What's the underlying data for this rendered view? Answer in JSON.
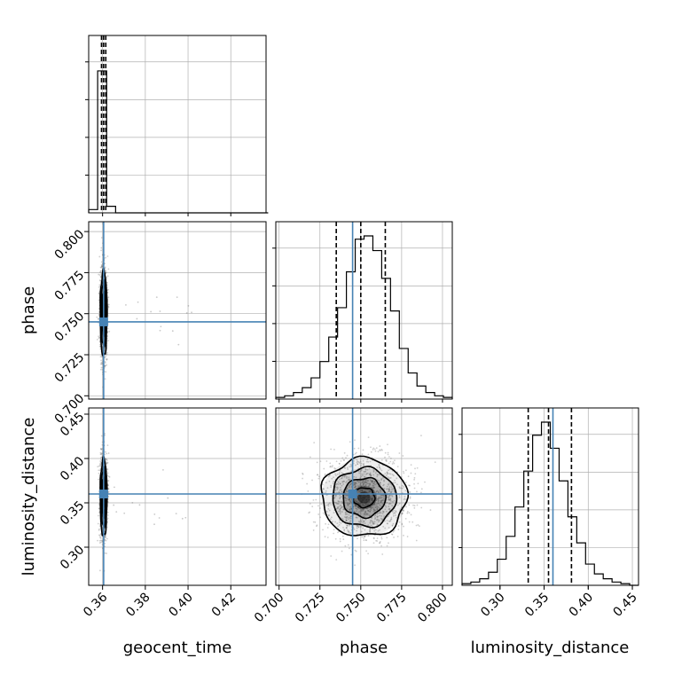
{
  "chart_data": {
    "type": "scatter",
    "kind": "corner-plot",
    "parameters": [
      "geocent_time",
      "phase",
      "luminosity_distance"
    ],
    "truth_color": "#4682b4",
    "truths": {
      "geocent_time": 0.3605,
      "phase": 0.745,
      "luminosity_distance": 0.36
    },
    "quantiles": {
      "geocent_time": [
        0.3595,
        0.3605,
        0.3615
      ],
      "phase": [
        0.735,
        0.75,
        0.765
      ],
      "luminosity_distance": [
        0.332,
        0.355,
        0.381
      ]
    },
    "ranges": {
      "geocent_time": [
        0.3535,
        0.4365
      ],
      "phase": [
        0.698,
        0.806
      ],
      "luminosity_distance": [
        0.257,
        0.457
      ]
    },
    "ticks": {
      "geocent_time": [
        "0.36",
        "0.38",
        "0.40",
        "0.42"
      ],
      "phase": [
        "0.700",
        "0.725",
        "0.750",
        "0.775",
        "0.800"
      ],
      "luminosity_distance": [
        "0.30",
        "0.35",
        "0.40",
        "0.45"
      ]
    },
    "histograms": {
      "geocent_time": {
        "edges_start": 0.3535,
        "bin_width": 0.0042,
        "counts": [
          0.02,
          0.87,
          0.04,
          0,
          0,
          0,
          0,
          0,
          0,
          0,
          0,
          0,
          0,
          0,
          0,
          0,
          0,
          0,
          0,
          0
        ]
      },
      "phase": {
        "edges_start": 0.698,
        "bin_width": 0.0054,
        "counts": [
          0.01,
          0.02,
          0.04,
          0.07,
          0.13,
          0.23,
          0.38,
          0.56,
          0.78,
          0.98,
          1.0,
          0.91,
          0.74,
          0.54,
          0.31,
          0.16,
          0.08,
          0.04,
          0.02,
          0.01
        ]
      },
      "luminosity_distance": {
        "edges_start": 0.257,
        "bin_width": 0.01,
        "counts": [
          0.01,
          0.02,
          0.04,
          0.08,
          0.16,
          0.3,
          0.48,
          0.7,
          0.92,
          1.0,
          0.84,
          0.64,
          0.42,
          0.26,
          0.13,
          0.07,
          0.04,
          0.02,
          0.01,
          0.0
        ]
      }
    },
    "density_2d": {
      "phase_vs_geocent_time": {
        "x_center": 0.3605,
        "x_sigma": 0.0008,
        "y_center": 0.75,
        "y_sigma": 0.013
      },
      "luminosity_distance_vs_geocent_time": {
        "x_center": 0.3605,
        "x_sigma": 0.0008,
        "y_center": 0.356,
        "y_sigma": 0.022
      },
      "luminosity_distance_vs_phase": {
        "x_center": 0.752,
        "x_sigma": 0.013,
        "y_center": 0.356,
        "y_sigma": 0.022
      }
    },
    "grid": true
  }
}
